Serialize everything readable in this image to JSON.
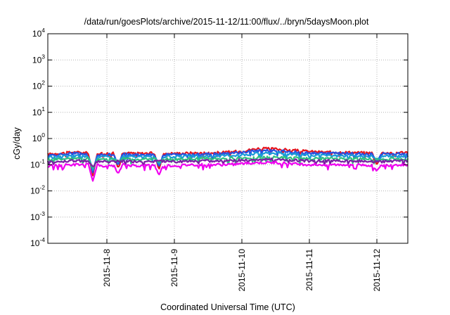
{
  "chart_data": {
    "type": "line",
    "title": "/data/run/goesPlots/archive/2015-11-12/11:00/flux/../bryn/5daysMoon.plot",
    "xlabel": "Coordinated Universal Time (UTC)",
    "ylabel": "cGy/day",
    "y_scale": "log",
    "ylim": [
      0.0001,
      10000
    ],
    "xlim": [
      "2015-11-07 03:00",
      "2015-11-12 11:00"
    ],
    "grid": true,
    "y_ticks": [
      {
        "base": "10",
        "exp": "-4"
      },
      {
        "base": "10",
        "exp": "-3"
      },
      {
        "base": "10",
        "exp": "-2"
      },
      {
        "base": "10",
        "exp": "-1"
      },
      {
        "base": "10",
        "exp": "0"
      },
      {
        "base": "10",
        "exp": "1"
      },
      {
        "base": "10",
        "exp": "2"
      },
      {
        "base": "10",
        "exp": "3"
      },
      {
        "base": "10",
        "exp": "4"
      }
    ],
    "x_ticks": [
      "2015-11-8",
      "2015-11-9",
      "2015-11-10",
      "2015-11-11",
      "2015-11-12"
    ],
    "x_tick_dates": [
      "2015-11-08 00:00",
      "2015-11-09 00:00",
      "2015-11-10 00:00",
      "2015-11-11 00:00",
      "2015-11-12 00:00"
    ],
    "x": [
      "2015-11-07 03:00",
      "2015-11-07 12:00",
      "2015-11-07 18:00",
      "2015-11-08 00:00",
      "2015-11-08 06:00",
      "2015-11-08 12:00",
      "2015-11-08 18:00",
      "2015-11-09 00:00",
      "2015-11-09 06:00",
      "2015-11-09 12:00",
      "2015-11-09 18:00",
      "2015-11-10 00:00",
      "2015-11-10 06:00",
      "2015-11-10 12:00",
      "2015-11-10 18:00",
      "2015-11-11 00:00",
      "2015-11-11 06:00",
      "2015-11-11 12:00",
      "2015-11-11 18:00",
      "2015-11-12 00:00",
      "2015-11-12 06:00",
      "2015-11-12 11:00"
    ],
    "series": [
      {
        "color": "#e8141c",
        "values": [
          0.25,
          0.3,
          0.28,
          0.27,
          0.28,
          0.27,
          0.28,
          0.27,
          0.28,
          0.28,
          0.3,
          0.33,
          0.42,
          0.4,
          0.36,
          0.32,
          0.3,
          0.3,
          0.29,
          0.28,
          0.29,
          0.3
        ]
      },
      {
        "color": "#2850e0",
        "values": [
          0.22,
          0.27,
          0.25,
          0.24,
          0.25,
          0.24,
          0.25,
          0.24,
          0.25,
          0.25,
          0.27,
          0.29,
          0.35,
          0.34,
          0.31,
          0.28,
          0.27,
          0.27,
          0.26,
          0.25,
          0.26,
          0.27
        ]
      },
      {
        "color": "#1a9ad8",
        "values": [
          0.19,
          0.22,
          0.21,
          0.2,
          0.21,
          0.2,
          0.21,
          0.2,
          0.21,
          0.21,
          0.22,
          0.24,
          0.28,
          0.28,
          0.26,
          0.23,
          0.22,
          0.22,
          0.21,
          0.21,
          0.21,
          0.22
        ]
      },
      {
        "color": "#30c080",
        "values": [
          0.16,
          0.17,
          0.17,
          0.16,
          0.17,
          0.16,
          0.17,
          0.16,
          0.17,
          0.17,
          0.17,
          0.18,
          0.19,
          0.19,
          0.18,
          0.17,
          0.17,
          0.17,
          0.17,
          0.16,
          0.17,
          0.17
        ]
      },
      {
        "color": "#7a1fa2",
        "values": [
          0.13,
          0.14,
          0.14,
          0.13,
          0.14,
          0.13,
          0.14,
          0.13,
          0.14,
          0.14,
          0.14,
          0.15,
          0.16,
          0.16,
          0.15,
          0.14,
          0.14,
          0.14,
          0.14,
          0.13,
          0.14,
          0.14
        ]
      },
      {
        "color": "#f000f0",
        "values": [
          0.09,
          0.1,
          0.1,
          0.09,
          0.1,
          0.09,
          0.1,
          0.09,
          0.1,
          0.1,
          0.1,
          0.11,
          0.12,
          0.12,
          0.11,
          0.1,
          0.1,
          0.1,
          0.1,
          0.09,
          0.1,
          0.1
        ]
      }
    ],
    "dips": [
      {
        "x": "2015-11-07 19:00",
        "min": 0.024
      },
      {
        "x": "2015-11-08 04:00",
        "min": 0.045
      },
      {
        "x": "2015-11-08 18:30",
        "min": 0.04
      },
      {
        "x": "2015-11-12 00:00",
        "min": 0.06
      }
    ]
  }
}
